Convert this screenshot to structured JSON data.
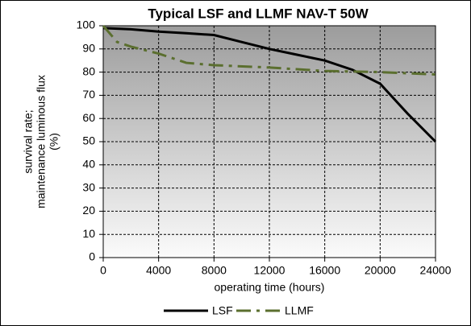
{
  "chart_data": {
    "type": "line",
    "title": "Typical LSF and LLMF NAV-T 50W",
    "xlabel": "operating time  (hours)",
    "ylabel": [
      "survival rate;",
      "maintenance luminous flux",
      "(%)"
    ],
    "xlim": [
      0,
      24000
    ],
    "xticks": [
      0,
      4000,
      8000,
      12000,
      16000,
      20000,
      24000
    ],
    "ylim": [
      0,
      100
    ],
    "yticks": [
      0,
      10,
      20,
      30,
      40,
      50,
      60,
      70,
      80,
      90,
      100
    ],
    "grid": true,
    "legend": "bottom",
    "series": [
      {
        "name": "LSF",
        "color": "#000000",
        "style": "solid",
        "x": [
          0,
          2000,
          4000,
          6000,
          8000,
          10000,
          12000,
          14000,
          16000,
          18000,
          20000,
          22000,
          24000
        ],
        "values": [
          99,
          98.5,
          97.5,
          96.8,
          96,
          93,
          90,
          87.5,
          85,
          81,
          75,
          62,
          50
        ]
      },
      {
        "name": "LLMF",
        "color": "#5b6f2f",
        "style": "dash-dot",
        "x": [
          0,
          1000,
          2000,
          4000,
          6000,
          8000,
          12000,
          16000,
          20000,
          24000
        ],
        "values": [
          100,
          93,
          91,
          88,
          84,
          83,
          82,
          80.5,
          80,
          79
        ]
      }
    ]
  }
}
